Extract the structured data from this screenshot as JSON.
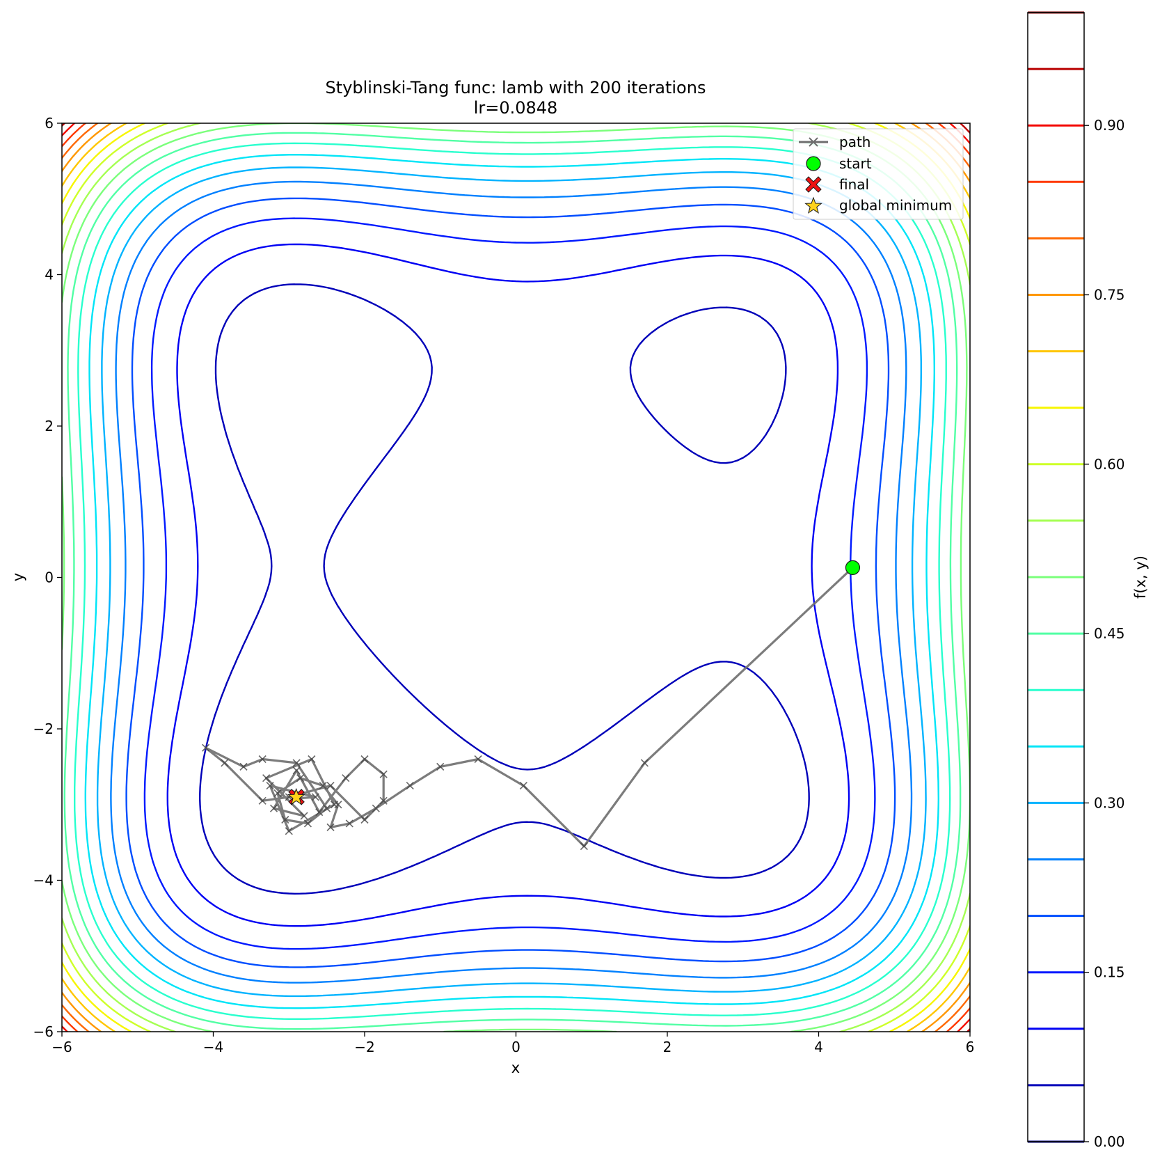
{
  "chart_data": {
    "type": "contour",
    "title": "Styblinski-Tang func: lamb with 200 iterations",
    "subtitle": "lr=0.0848",
    "xlabel": "x",
    "ylabel": "y",
    "xlim": [
      -6,
      6
    ],
    "ylim": [
      -6,
      6
    ],
    "xticks": [
      -6,
      -4,
      -2,
      0,
      2,
      4,
      6
    ],
    "yticks": [
      -6,
      -4,
      -2,
      0,
      2,
      4,
      6
    ],
    "grid": false,
    "legend_position": "top-right",
    "colorbar": {
      "label": "f(x, y)",
      "range": [
        0.0,
        1.0
      ],
      "ticks": [
        0.0,
        0.15,
        0.3,
        0.45,
        0.6,
        0.75,
        0.9
      ],
      "tick_labels": [
        "0.00",
        "0.15",
        "0.30",
        "0.45",
        "0.60",
        "0.75",
        "0.90"
      ],
      "colormap": "jet",
      "contour_levels": [
        0.0,
        0.05,
        0.1,
        0.15,
        0.2,
        0.25,
        0.3,
        0.35,
        0.4,
        0.45,
        0.5,
        0.55,
        0.6,
        0.65,
        0.7,
        0.75,
        0.8,
        0.85,
        0.9,
        0.95,
        1.0
      ]
    },
    "legend": [
      {
        "label": "path",
        "marker": "x",
        "color": "#6e6e6e"
      },
      {
        "label": "start",
        "marker": "circle",
        "color": "#00ff00"
      },
      {
        "label": "final",
        "marker": "X",
        "color": "#ee1111"
      },
      {
        "label": "global minimum",
        "marker": "star",
        "color": "#ffd21a"
      }
    ],
    "series": [
      {
        "name": "path",
        "type": "line",
        "color": "#6e6e6e",
        "points": [
          [
            4.45,
            0.13
          ],
          [
            1.7,
            -2.45
          ],
          [
            0.9,
            -3.55
          ],
          [
            0.1,
            -2.75
          ],
          [
            -0.5,
            -2.4
          ],
          [
            -1.0,
            -2.5
          ],
          [
            -1.4,
            -2.75
          ],
          [
            -1.85,
            -3.05
          ],
          [
            -2.2,
            -3.25
          ],
          [
            -2.45,
            -3.3
          ],
          [
            -2.35,
            -3.0
          ],
          [
            -2.55,
            -2.75
          ],
          [
            -2.85,
            -2.65
          ],
          [
            -3.15,
            -2.85
          ],
          [
            -3.05,
            -3.2
          ],
          [
            -2.75,
            -3.25
          ],
          [
            -2.5,
            -3.05
          ],
          [
            -2.9,
            -2.45
          ],
          [
            -3.35,
            -2.4
          ],
          [
            -3.6,
            -2.5
          ],
          [
            -4.1,
            -2.25
          ],
          [
            -3.85,
            -2.45
          ],
          [
            -3.35,
            -2.95
          ],
          [
            -3.0,
            -2.9
          ],
          [
            -2.45,
            -2.75
          ],
          [
            -2.0,
            -3.2
          ],
          [
            -1.75,
            -2.95
          ],
          [
            -1.75,
            -2.6
          ],
          [
            -2.0,
            -2.4
          ],
          [
            -2.25,
            -2.65
          ],
          [
            -2.6,
            -3.1
          ],
          [
            -2.9,
            -2.55
          ],
          [
            -3.2,
            -3.05
          ],
          [
            -2.8,
            -3.15
          ],
          [
            -3.3,
            -2.65
          ],
          [
            -2.7,
            -2.4
          ],
          [
            -2.4,
            -3.0
          ],
          [
            -3.0,
            -3.35
          ],
          [
            -3.25,
            -2.75
          ],
          [
            -2.65,
            -2.9
          ],
          [
            -2.9,
            -2.92
          ]
        ]
      },
      {
        "name": "start",
        "type": "scatter",
        "color": "#00ff00",
        "points": [
          [
            4.45,
            0.13
          ]
        ]
      },
      {
        "name": "final",
        "type": "scatter",
        "color": "#ee1111",
        "points": [
          [
            -2.9,
            -2.9
          ]
        ]
      },
      {
        "name": "global minimum",
        "type": "scatter",
        "color": "#ffd21a",
        "points": [
          [
            -2.9035,
            -2.9035
          ]
        ]
      }
    ]
  }
}
